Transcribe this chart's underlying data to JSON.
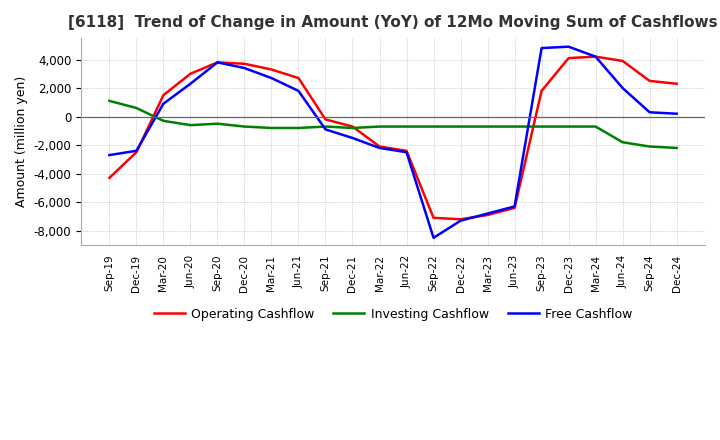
{
  "title": "[6118]  Trend of Change in Amount (YoY) of 12Mo Moving Sum of Cashflows",
  "ylabel": "Amount (million yen)",
  "ylim": [
    -9000,
    5500
  ],
  "yticks": [
    -8000,
    -6000,
    -4000,
    -2000,
    0,
    2000,
    4000
  ],
  "x_labels": [
    "Sep-19",
    "Dec-19",
    "Mar-20",
    "Jun-20",
    "Sep-20",
    "Dec-20",
    "Mar-21",
    "Jun-21",
    "Sep-21",
    "Dec-21",
    "Mar-22",
    "Jun-22",
    "Sep-22",
    "Dec-22",
    "Mar-23",
    "Jun-23",
    "Sep-23",
    "Dec-23",
    "Mar-24",
    "Jun-24",
    "Sep-24",
    "Dec-24"
  ],
  "operating": [
    -4300,
    -2500,
    1500,
    3000,
    3800,
    3700,
    3300,
    2700,
    -200,
    -700,
    -2100,
    -2400,
    -7100,
    -7200,
    -6900,
    -6400,
    1800,
    4100,
    4200,
    3900,
    2500,
    2300
  ],
  "investing": [
    1100,
    600,
    -300,
    -600,
    -500,
    -700,
    -800,
    -800,
    -700,
    -800,
    -700,
    -700,
    -700,
    -700,
    -700,
    -700,
    -700,
    -700,
    -700,
    -1800,
    -2100,
    -2200
  ],
  "free": [
    -2700,
    -2400,
    900,
    2300,
    3800,
    3400,
    2700,
    1800,
    -900,
    -1500,
    -2200,
    -2500,
    -8500,
    -7300,
    -6800,
    -6300,
    4800,
    4900,
    4200,
    2000,
    300,
    200
  ],
  "operating_color": "#ff0000",
  "investing_color": "#008000",
  "free_color": "#0000ff",
  "line_width": 1.8,
  "background_color": "#ffffff",
  "grid_color": "#aaaaaa"
}
